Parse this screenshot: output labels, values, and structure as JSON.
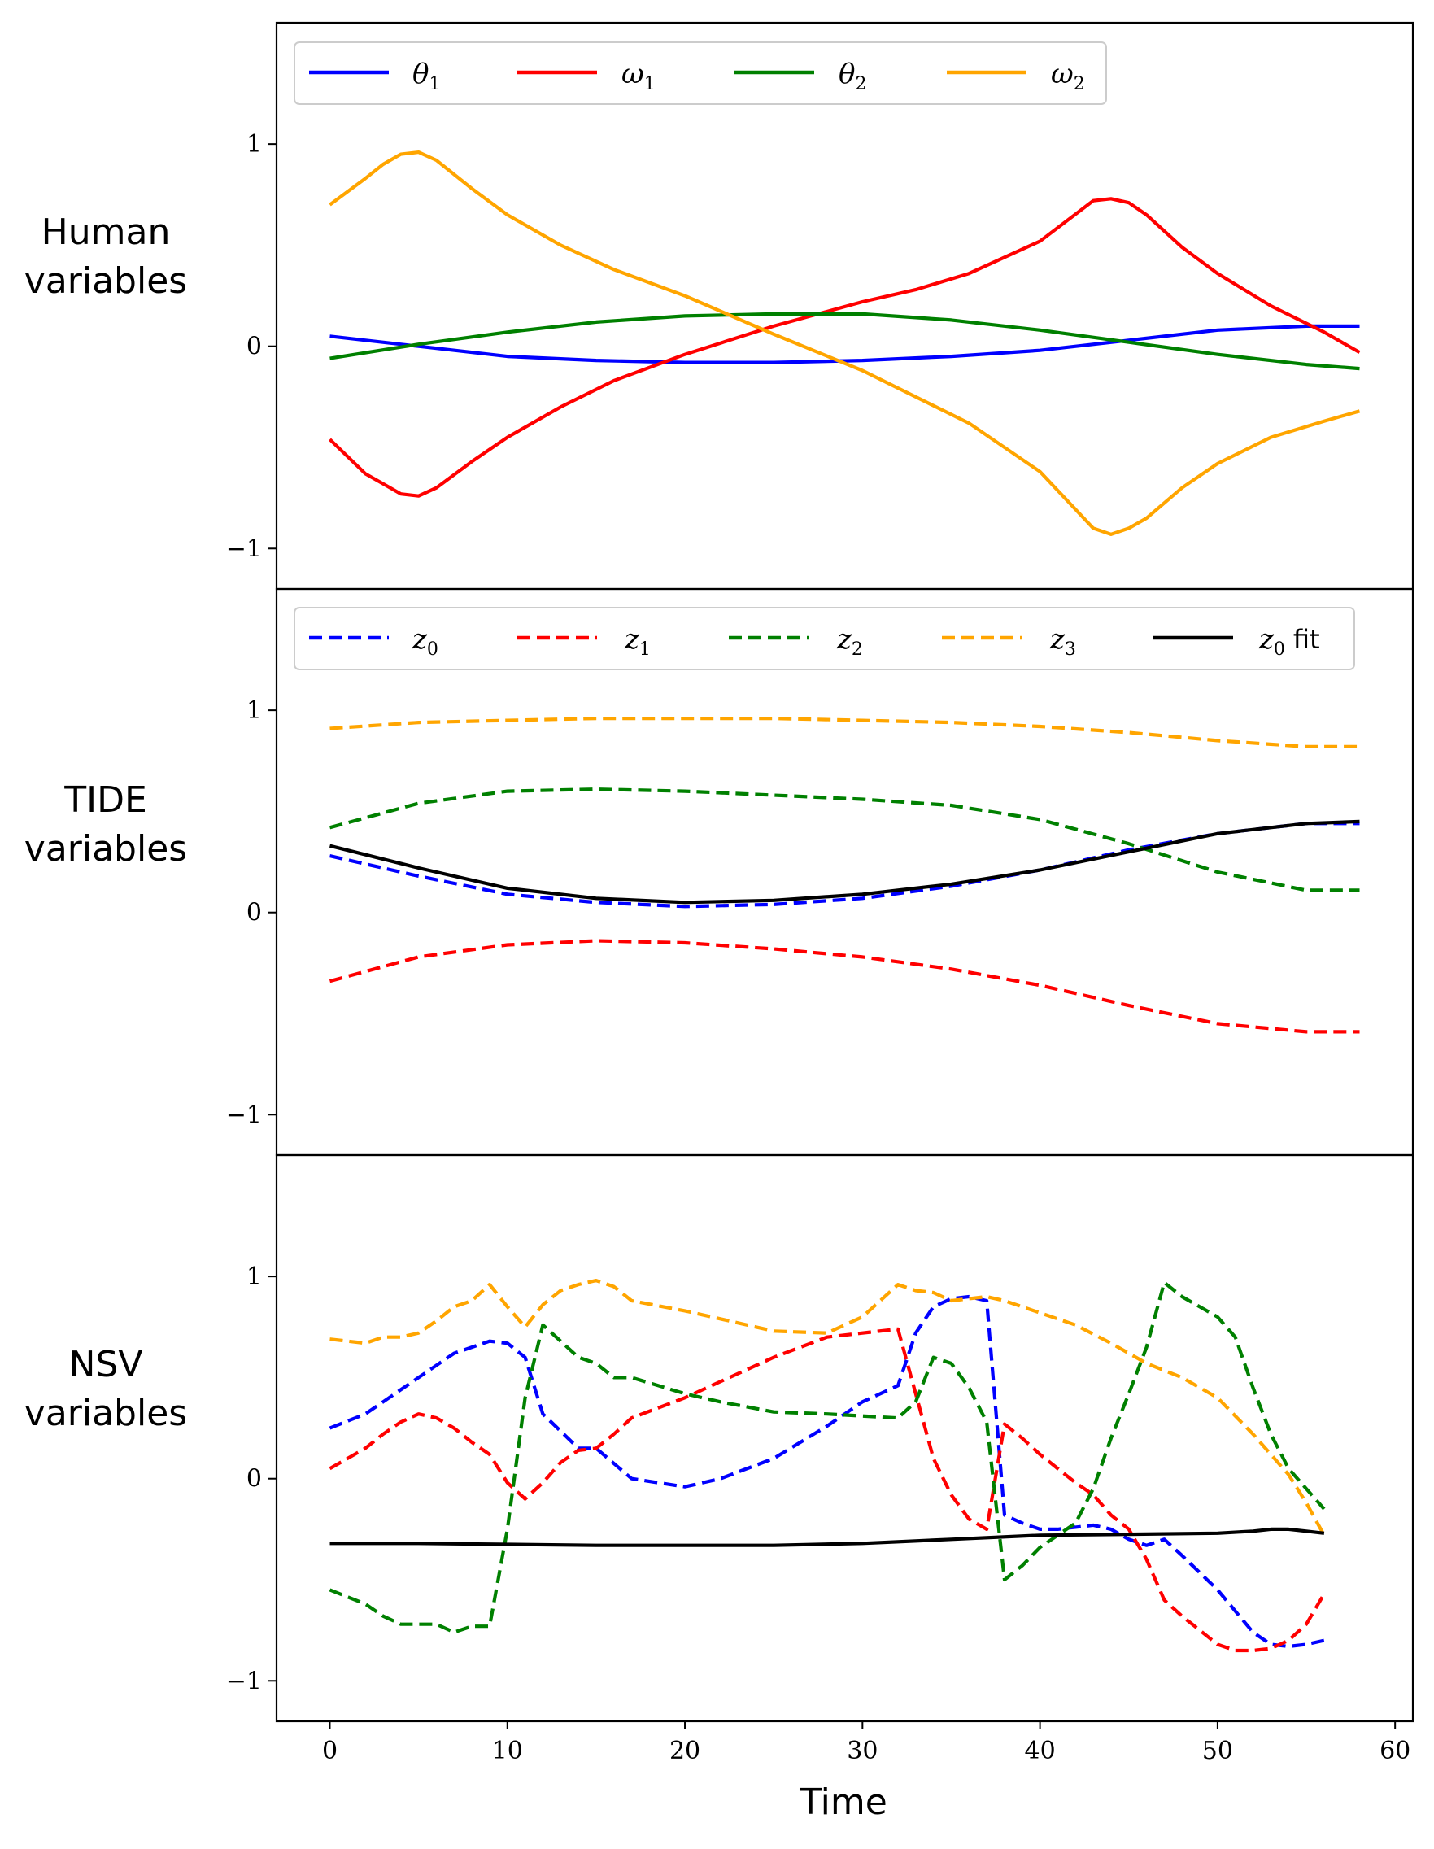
{
  "figure": {
    "xlabel": "Time",
    "x_ticks": [
      "0",
      "10",
      "20",
      "30",
      "40",
      "50",
      "60"
    ],
    "y_ticks": [
      "1",
      "0",
      "−1"
    ]
  },
  "chart_data": [
    {
      "type": "line",
      "panel": "Human variables",
      "ylabel": [
        "Human",
        "variables"
      ],
      "xlim": [
        -3,
        61
      ],
      "ylim": [
        -1.2,
        1.6
      ],
      "yticks": [
        1,
        0,
        -1
      ],
      "legend": {
        "position": "top-left",
        "columns": 4
      },
      "series": [
        {
          "name": "θ1",
          "sym": "θ",
          "sub": "1",
          "color": "#0000ff",
          "dash": "solid",
          "x": [
            0,
            5,
            10,
            15,
            20,
            25,
            30,
            35,
            40,
            45,
            50,
            55,
            58
          ],
          "y": [
            0.05,
            0.0,
            -0.05,
            -0.07,
            -0.08,
            -0.08,
            -0.07,
            -0.05,
            -0.02,
            0.03,
            0.08,
            0.1,
            0.1
          ]
        },
        {
          "name": "ω1",
          "sym": "ω",
          "sub": "1",
          "color": "#ff0000",
          "dash": "solid",
          "x": [
            0,
            2,
            3,
            4,
            5,
            6,
            8,
            10,
            13,
            16,
            20,
            25,
            30,
            33,
            36,
            40,
            43,
            44,
            45,
            46,
            48,
            50,
            53,
            56,
            58
          ],
          "y": [
            -0.46,
            -0.63,
            -0.68,
            -0.73,
            -0.74,
            -0.7,
            -0.57,
            -0.45,
            -0.3,
            -0.17,
            -0.04,
            0.1,
            0.22,
            0.28,
            0.36,
            0.52,
            0.72,
            0.73,
            0.71,
            0.65,
            0.49,
            0.36,
            0.2,
            0.07,
            -0.03
          ]
        },
        {
          "name": "θ2",
          "sym": "θ",
          "sub": "2",
          "color": "#008000",
          "dash": "solid",
          "x": [
            0,
            5,
            10,
            15,
            20,
            25,
            30,
            35,
            40,
            45,
            50,
            55,
            58
          ],
          "y": [
            -0.06,
            0.01,
            0.07,
            0.12,
            0.15,
            0.16,
            0.16,
            0.13,
            0.08,
            0.02,
            -0.04,
            -0.09,
            -0.11
          ]
        },
        {
          "name": "ω2",
          "sym": "ω",
          "sub": "2",
          "color": "#ffa500",
          "dash": "solid",
          "x": [
            0,
            2,
            3,
            4,
            5,
            6,
            8,
            10,
            13,
            16,
            20,
            25,
            30,
            33,
            36,
            40,
            43,
            44,
            45,
            46,
            48,
            50,
            53,
            56,
            58
          ],
          "y": [
            0.7,
            0.83,
            0.9,
            0.95,
            0.96,
            0.92,
            0.78,
            0.65,
            0.5,
            0.38,
            0.25,
            0.06,
            -0.12,
            -0.25,
            -0.38,
            -0.62,
            -0.9,
            -0.93,
            -0.9,
            -0.85,
            -0.7,
            -0.58,
            -0.45,
            -0.37,
            -0.32
          ]
        }
      ]
    },
    {
      "type": "line",
      "panel": "TIDE variables",
      "ylabel": [
        "TIDE",
        "variables"
      ],
      "xlim": [
        -3,
        61
      ],
      "ylim": [
        -1.2,
        1.6
      ],
      "yticks": [
        1,
        0,
        -1
      ],
      "legend": {
        "position": "top-left",
        "columns": 5
      },
      "series": [
        {
          "name": "z0",
          "sym": "z",
          "sub": "0",
          "color": "#0000ff",
          "dash": "dashed",
          "x": [
            0,
            5,
            10,
            15,
            20,
            25,
            30,
            35,
            40,
            45,
            50,
            55,
            58
          ],
          "y": [
            0.28,
            0.18,
            0.09,
            0.05,
            0.03,
            0.04,
            0.07,
            0.13,
            0.21,
            0.31,
            0.39,
            0.44,
            0.44
          ]
        },
        {
          "name": "z1",
          "sym": "z",
          "sub": "1",
          "color": "#ff0000",
          "dash": "dashed",
          "x": [
            0,
            5,
            10,
            15,
            20,
            25,
            30,
            35,
            40,
            45,
            50,
            55,
            58
          ],
          "y": [
            -0.34,
            -0.22,
            -0.16,
            -0.14,
            -0.15,
            -0.18,
            -0.22,
            -0.28,
            -0.36,
            -0.46,
            -0.55,
            -0.59,
            -0.59
          ]
        },
        {
          "name": "z2",
          "sym": "z",
          "sub": "2",
          "color": "#008000",
          "dash": "dashed",
          "x": [
            0,
            5,
            10,
            15,
            20,
            25,
            30,
            35,
            40,
            45,
            50,
            55,
            58
          ],
          "y": [
            0.42,
            0.54,
            0.6,
            0.61,
            0.6,
            0.58,
            0.56,
            0.53,
            0.46,
            0.34,
            0.2,
            0.11,
            0.11
          ]
        },
        {
          "name": "z3",
          "sym": "z",
          "sub": "3",
          "color": "#ffa500",
          "dash": "dashed",
          "x": [
            0,
            5,
            10,
            15,
            20,
            25,
            30,
            35,
            40,
            45,
            50,
            55,
            58
          ],
          "y": [
            0.91,
            0.94,
            0.95,
            0.96,
            0.96,
            0.96,
            0.95,
            0.94,
            0.92,
            0.89,
            0.85,
            0.82,
            0.82
          ]
        },
        {
          "name": "z0 fit",
          "sym": "z",
          "sub": "0",
          "suffix": "fit",
          "color": "#000000",
          "dash": "solid",
          "x": [
            0,
            5,
            10,
            15,
            20,
            25,
            30,
            35,
            40,
            45,
            50,
            55,
            58
          ],
          "y": [
            0.33,
            0.22,
            0.12,
            0.07,
            0.05,
            0.06,
            0.09,
            0.14,
            0.21,
            0.3,
            0.39,
            0.44,
            0.45
          ]
        }
      ]
    },
    {
      "type": "line",
      "panel": "NSV variables",
      "ylabel": [
        "NSV",
        "variables"
      ],
      "xlim": [
        -3,
        61
      ],
      "ylim": [
        -1.2,
        1.6
      ],
      "yticks": [
        1,
        0,
        -1
      ],
      "series": [
        {
          "name": "z0",
          "color": "#0000ff",
          "dash": "dashed",
          "x": [
            0,
            2,
            3,
            5,
            7,
            9,
            10,
            11,
            12,
            14,
            15,
            17,
            20,
            22,
            25,
            28,
            30,
            32,
            33,
            34,
            35,
            36,
            37,
            38,
            39,
            40,
            41,
            42,
            43,
            44,
            45,
            46,
            47,
            48,
            50,
            52,
            53,
            54,
            55,
            56
          ],
          "y": [
            0.25,
            0.32,
            0.38,
            0.5,
            0.62,
            0.68,
            0.67,
            0.6,
            0.32,
            0.15,
            0.15,
            0.0,
            -0.04,
            0.0,
            0.1,
            0.26,
            0.38,
            0.46,
            0.72,
            0.85,
            0.89,
            0.9,
            0.88,
            -0.18,
            -0.22,
            -0.25,
            -0.25,
            -0.24,
            -0.23,
            -0.25,
            -0.3,
            -0.33,
            -0.3,
            -0.38,
            -0.55,
            -0.76,
            -0.82,
            -0.83,
            -0.82,
            -0.8
          ]
        },
        {
          "name": "z1",
          "color": "#ff0000",
          "dash": "dashed",
          "x": [
            0,
            2,
            3,
            4,
            5,
            6,
            7,
            8,
            9,
            10,
            11,
            12,
            13,
            14,
            15,
            16,
            17,
            20,
            22,
            25,
            28,
            30,
            32,
            33,
            34,
            35,
            36,
            37,
            38,
            39,
            40,
            41,
            42,
            43,
            44,
            45,
            46,
            47,
            48,
            50,
            51,
            52,
            53,
            54,
            55,
            56
          ],
          "y": [
            0.05,
            0.15,
            0.22,
            0.28,
            0.32,
            0.3,
            0.25,
            0.18,
            0.12,
            -0.02,
            -0.1,
            -0.02,
            0.08,
            0.14,
            0.15,
            0.22,
            0.3,
            0.4,
            0.48,
            0.6,
            0.7,
            0.72,
            0.74,
            0.42,
            0.1,
            -0.08,
            -0.2,
            -0.25,
            0.27,
            0.2,
            0.12,
            0.05,
            -0.02,
            -0.08,
            -0.18,
            -0.25,
            -0.4,
            -0.6,
            -0.68,
            -0.82,
            -0.85,
            -0.85,
            -0.84,
            -0.8,
            -0.72,
            -0.57
          ]
        },
        {
          "name": "z2",
          "color": "#008000",
          "dash": "dashed",
          "x": [
            0,
            2,
            3,
            4,
            5,
            6,
            7,
            8,
            9,
            10,
            11,
            12,
            13,
            14,
            15,
            16,
            17,
            20,
            22,
            25,
            28,
            30,
            32,
            33,
            34,
            35,
            36,
            37,
            38,
            39,
            40,
            41,
            42,
            43,
            44,
            45,
            46,
            47,
            48,
            50,
            51,
            52,
            53,
            54,
            55,
            56
          ],
          "y": [
            -0.55,
            -0.62,
            -0.68,
            -0.72,
            -0.72,
            -0.72,
            -0.76,
            -0.73,
            -0.73,
            -0.25,
            0.4,
            0.76,
            0.68,
            0.6,
            0.57,
            0.5,
            0.5,
            0.42,
            0.38,
            0.33,
            0.32,
            0.31,
            0.3,
            0.38,
            0.6,
            0.57,
            0.45,
            0.28,
            -0.5,
            -0.43,
            -0.34,
            -0.28,
            -0.22,
            -0.05,
            0.2,
            0.42,
            0.65,
            0.97,
            0.9,
            0.8,
            0.7,
            0.45,
            0.22,
            0.05,
            -0.05,
            -0.15
          ]
        },
        {
          "name": "z3",
          "color": "#ffa500",
          "dash": "dashed",
          "x": [
            0,
            2,
            3,
            4,
            5,
            6,
            7,
            8,
            9,
            10,
            11,
            12,
            13,
            14,
            15,
            16,
            17,
            20,
            22,
            25,
            28,
            30,
            31,
            32,
            33,
            34,
            35,
            36,
            37,
            38,
            39,
            40,
            42,
            44,
            46,
            48,
            50,
            52,
            54,
            55,
            56
          ],
          "y": [
            0.69,
            0.67,
            0.7,
            0.7,
            0.72,
            0.78,
            0.85,
            0.88,
            0.96,
            0.85,
            0.75,
            0.86,
            0.93,
            0.96,
            0.98,
            0.95,
            0.88,
            0.83,
            0.79,
            0.73,
            0.72,
            0.8,
            0.88,
            0.96,
            0.93,
            0.92,
            0.88,
            0.89,
            0.9,
            0.88,
            0.85,
            0.82,
            0.76,
            0.67,
            0.57,
            0.5,
            0.4,
            0.22,
            0.02,
            -0.12,
            -0.28
          ]
        },
        {
          "name": "z0 fit",
          "color": "#000000",
          "dash": "solid",
          "x": [
            0,
            5,
            10,
            15,
            20,
            25,
            30,
            35,
            40,
            45,
            50,
            52,
            53,
            54,
            55,
            56
          ],
          "y": [
            -0.32,
            -0.32,
            -0.325,
            -0.33,
            -0.33,
            -0.33,
            -0.32,
            -0.3,
            -0.28,
            -0.275,
            -0.27,
            -0.26,
            -0.25,
            -0.25,
            -0.26,
            -0.27
          ]
        }
      ]
    }
  ]
}
